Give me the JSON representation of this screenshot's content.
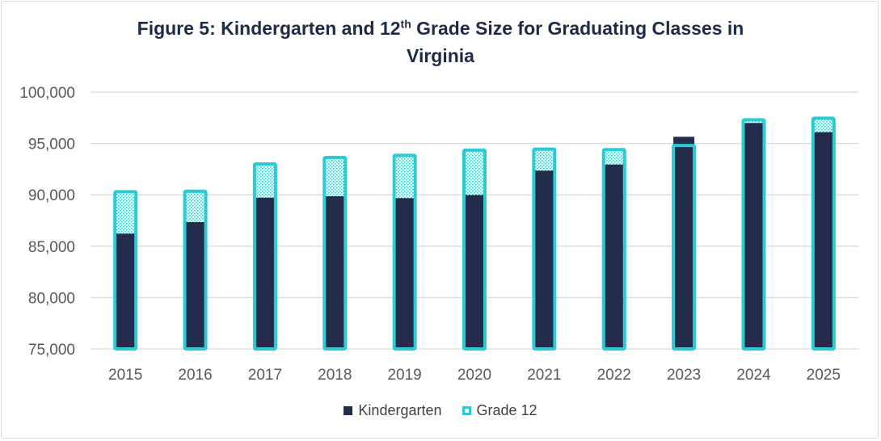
{
  "chart_data": {
    "type": "bar",
    "title_main": "Figure 5: Kindergarten and 12",
    "title_sup": "th",
    "title_rest": " Grade Size for Graduating Classes in Virginia",
    "xlabel": "",
    "ylabel": "",
    "ylim": [
      75000,
      100000
    ],
    "yticks": [
      "75,000",
      "80,000",
      "85,000",
      "90,000",
      "95,000",
      "100,000"
    ],
    "ytick_values": [
      75000,
      80000,
      85000,
      90000,
      95000,
      100000
    ],
    "grid": true,
    "legend_position": "bottom",
    "categories": [
      "2015",
      "2016",
      "2017",
      "2018",
      "2019",
      "2020",
      "2021",
      "2022",
      "2023",
      "2024",
      "2025"
    ],
    "series": [
      {
        "name": "Kindergarten",
        "color": "#232c4a",
        "values": [
          86220,
          87340,
          89720,
          89860,
          89680,
          89980,
          92350,
          92950,
          95650,
          96990,
          96100
        ]
      },
      {
        "name": "Grade 12",
        "color": "#2ccad3",
        "values": [
          90300,
          90350,
          93000,
          93630,
          93850,
          94350,
          94450,
          94400,
          94800,
          97300,
          97450
        ]
      }
    ]
  }
}
